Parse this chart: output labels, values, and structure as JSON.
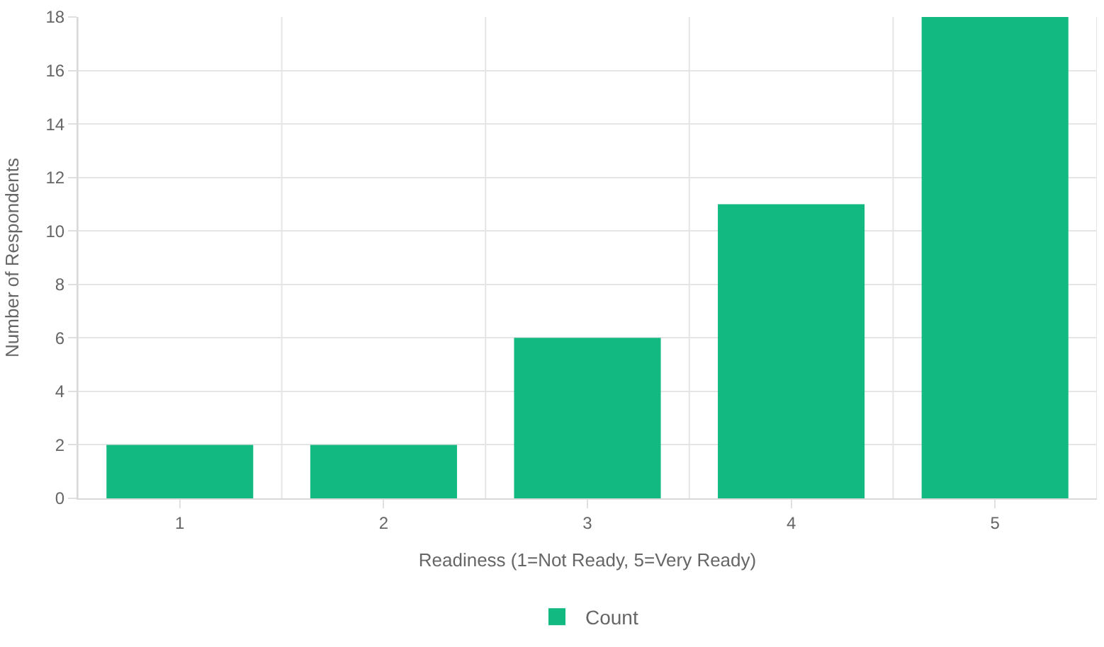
{
  "chart_data": {
    "type": "bar",
    "xlabel": "Readiness (1=Not Ready, 5=Very Ready)",
    "ylabel": "Number of Respondents",
    "categories": [
      "1",
      "2",
      "3",
      "4",
      "5"
    ],
    "series": [
      {
        "name": "Count",
        "color": "#12b981",
        "values": [
          2,
          2,
          6,
          11,
          18
        ]
      }
    ],
    "ylim": [
      0,
      18
    ],
    "yticks": [
      0,
      2,
      4,
      6,
      8,
      10,
      12,
      14,
      16,
      18
    ],
    "grid": true,
    "legend": "bottom"
  }
}
